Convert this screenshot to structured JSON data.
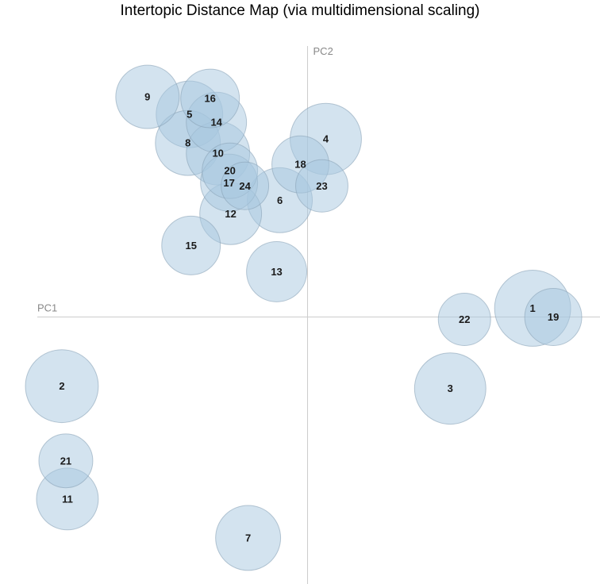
{
  "chart_data": {
    "type": "scatter",
    "title": "Intertopic Distance Map (via multidimensional scaling)",
    "xlabel": "PC1",
    "ylabel": "PC2",
    "grid": false,
    "xlim": [
      -341,
      369
    ],
    "ylim": [
      -336,
      341
    ],
    "size_encoding": "bubble radius",
    "points": [
      {
        "label": "1",
        "x": 284,
        "y": 11,
        "r": 48
      },
      {
        "label": "2",
        "x": -310,
        "y": -87,
        "r": 46
      },
      {
        "label": "3",
        "x": 180,
        "y": -90,
        "r": 45
      },
      {
        "label": "4",
        "x": 23,
        "y": 224,
        "r": 45
      },
      {
        "label": "5",
        "x": -149,
        "y": 255,
        "r": 42
      },
      {
        "label": "6",
        "x": -35,
        "y": 147,
        "r": 41
      },
      {
        "label": "7",
        "x": -75,
        "y": -278,
        "r": 41
      },
      {
        "label": "8",
        "x": -151,
        "y": 219,
        "r": 41
      },
      {
        "label": "9",
        "x": -202,
        "y": 277,
        "r": 40
      },
      {
        "label": "10",
        "x": -113,
        "y": 206,
        "r": 40
      },
      {
        "label": "11",
        "x": -303,
        "y": -229,
        "r": 39
      },
      {
        "label": "12",
        "x": -97,
        "y": 130,
        "r": 39
      },
      {
        "label": "13",
        "x": -39,
        "y": 57,
        "r": 38
      },
      {
        "label": "14",
        "x": -115,
        "y": 245,
        "r": 38
      },
      {
        "label": "15",
        "x": -147,
        "y": 90,
        "r": 37
      },
      {
        "label": "16",
        "x": -123,
        "y": 275,
        "r": 37
      },
      {
        "label": "17",
        "x": -99,
        "y": 169,
        "r": 36
      },
      {
        "label": "18",
        "x": -9,
        "y": 192,
        "r": 36
      },
      {
        "label": "19",
        "x": 310,
        "y": 0,
        "r": 36
      },
      {
        "label": "20",
        "x": -98,
        "y": 184,
        "r": 35
      },
      {
        "label": "21",
        "x": -305,
        "y": -181,
        "r": 34
      },
      {
        "label": "22",
        "x": 198,
        "y": -3,
        "r": 33
      },
      {
        "label": "23",
        "x": 18,
        "y": 165,
        "r": 33
      },
      {
        "label": "24",
        "x": -79,
        "y": 165,
        "r": 30
      }
    ]
  }
}
